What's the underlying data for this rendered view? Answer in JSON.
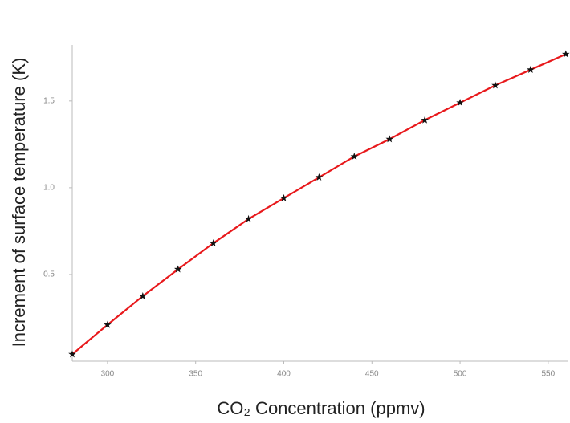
{
  "chart_data": {
    "type": "line",
    "x_label": "CO₂ Concentration (ppmv)",
    "y_label": "Increment of surface temperature (K)",
    "x": [
      280,
      300,
      320,
      340,
      360,
      380,
      400,
      420,
      440,
      460,
      480,
      500,
      520,
      540,
      560
    ],
    "series": [
      {
        "color": "#e8191c",
        "marker_color": "#111111",
        "values": [
          0.04,
          0.21,
          0.375,
          0.53,
          0.68,
          0.82,
          0.94,
          1.06,
          1.18,
          1.28,
          1.39,
          1.49,
          1.59,
          1.68,
          1.77
        ]
      }
    ],
    "xlim": [
      280,
      561
    ],
    "xticks": [
      300,
      350,
      400,
      450,
      500,
      550
    ],
    "ylim": [
      0,
      1.8
    ],
    "yticks": [
      0.5,
      {
        "value": 1,
        "label": "1.0"
      },
      1.5
    ],
    "grid": false
  }
}
